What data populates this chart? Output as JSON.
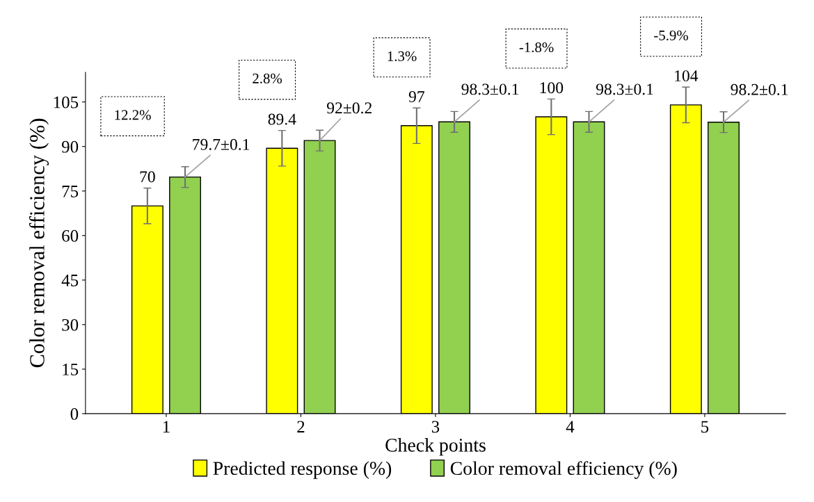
{
  "chart_data": {
    "type": "bar",
    "xlabel": "Check points",
    "ylabel": "Color removal efficiency (%)",
    "categories": [
      "1",
      "2",
      "3",
      "4",
      "5"
    ],
    "series": [
      {
        "name": "Predicted response (%)",
        "color": "#ffff00",
        "values": [
          70,
          89.4,
          97,
          100,
          104
        ],
        "errors": [
          6,
          6,
          6,
          6,
          6
        ],
        "value_labels": [
          "70",
          "89.4",
          "97",
          "100",
          "104"
        ]
      },
      {
        "name": "Color removal efficiency (%)",
        "color": "#92d050",
        "values": [
          79.7,
          92,
          98.3,
          98.3,
          98.2
        ],
        "errors": [
          3.5,
          3.5,
          3.5,
          3.5,
          3.5
        ],
        "value_labels": [
          "79.7±0.1",
          "92±0.2",
          "98.3±0.1",
          "98.3±0.1",
          "98.2±0.1"
        ]
      }
    ],
    "ylim": [
      0,
      115
    ],
    "yticks": [
      0,
      15,
      30,
      45,
      60,
      75,
      90,
      105
    ],
    "annotations": [
      "12.2%",
      "2.8%",
      "1.3%",
      "-1.8%",
      "-5.9%"
    ],
    "grid": false,
    "legend": "bottom"
  }
}
